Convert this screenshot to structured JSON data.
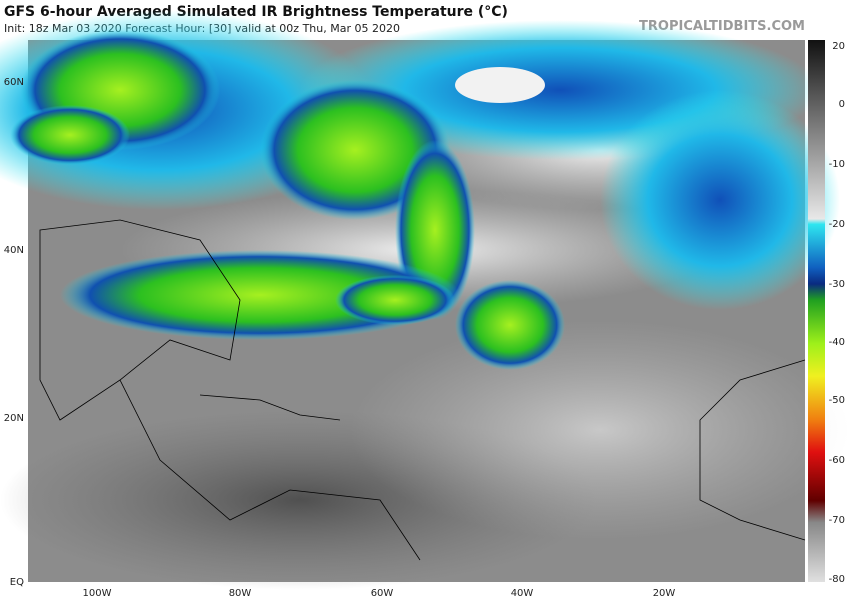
{
  "header": {
    "title": "GFS 6-hour Averaged Simulated IR Brightness Temperature (°C)",
    "subtitle": "Init: 18z Mar 03 2020   Forecast Hour: [30]   valid at 00z Thu, Mar 05 2020",
    "site": "TROPICALTIDBITS.COM"
  },
  "map": {
    "lat_labels": [
      "60N",
      "40N",
      "20N",
      "EQ"
    ],
    "lon_labels": [
      "100W",
      "80W",
      "60W",
      "40W",
      "20W"
    ]
  },
  "colorbar": {
    "labels": [
      "20",
      "0",
      "-10",
      "-20",
      "-30",
      "-40",
      "-50",
      "-60",
      "-70",
      "-80"
    ]
  }
}
